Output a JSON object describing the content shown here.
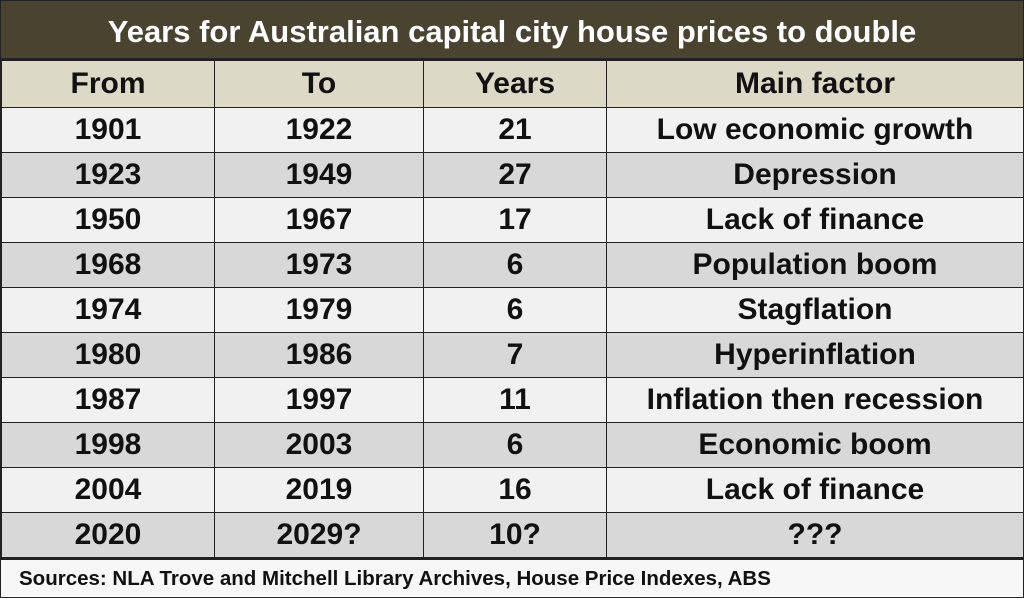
{
  "chart_data": {
    "type": "table",
    "title": "Years for Australian capital city house prices to double",
    "columns": [
      "From",
      "To",
      "Years",
      "Main factor"
    ],
    "rows": [
      [
        "1901",
        "1922",
        "21",
        "Low economic growth"
      ],
      [
        "1923",
        "1949",
        "27",
        "Depression"
      ],
      [
        "1950",
        "1967",
        "17",
        "Lack of finance"
      ],
      [
        "1968",
        "1973",
        "6",
        "Population boom"
      ],
      [
        "1974",
        "1979",
        "6",
        "Stagflation"
      ],
      [
        "1980",
        "1986",
        "7",
        "Hyperinflation"
      ],
      [
        "1987",
        "1997",
        "11",
        "Inflation then recession"
      ],
      [
        "1998",
        "2003",
        "6",
        "Economic boom"
      ],
      [
        "2004",
        "2019",
        "16",
        "Lack of finance"
      ],
      [
        "2020",
        "2029?",
        "10?",
        "???"
      ]
    ],
    "source": "Sources: NLA Trove and Mitchell Library Archives, House Price Indexes, ABS",
    "colors": {
      "title_bg": "#4a4330",
      "header_bg": "#dcd9c6",
      "row_light": "#f1f1f1",
      "row_dark": "#d8d8d8"
    }
  }
}
